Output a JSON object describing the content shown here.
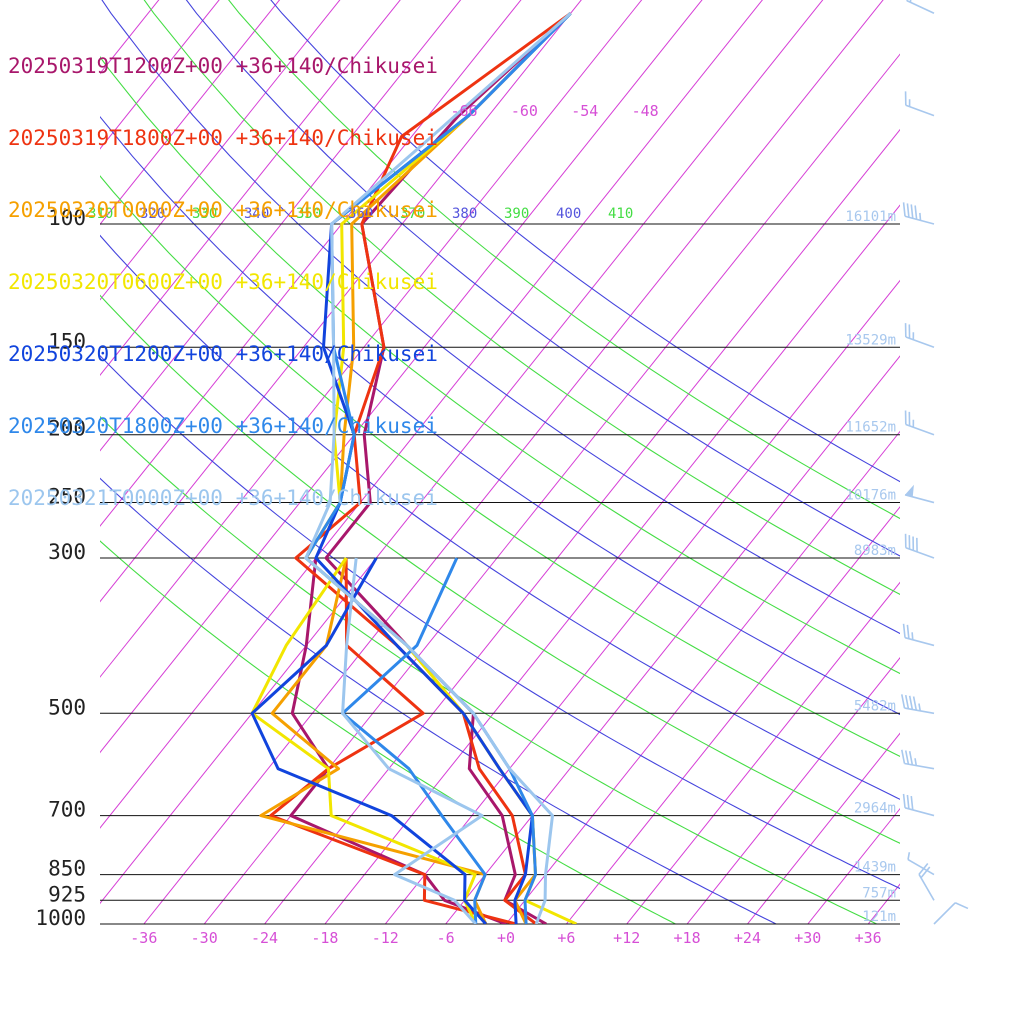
{
  "legend": [
    {
      "label": "20250319T1200Z+00 +36+140/Chikusei",
      "color": "#a8176b"
    },
    {
      "label": "20250319T1800Z+00 +36+140/Chikusei",
      "color": "#ee3311"
    },
    {
      "label": "20250320T0000Z+00 +36+140/Chikusei",
      "color": "#f5a000"
    },
    {
      "label": "20250320T0600Z+00 +36+140/Chikusei",
      "color": "#f2e600"
    },
    {
      "label": "20250320T1200Z+00 +36+140/Chikusei",
      "color": "#1144dd"
    },
    {
      "label": "20250320T1800Z+00 +36+140/Chikusei",
      "color": "#2f88ea"
    },
    {
      "label": "20250321T0000Z+00 +36+140/Chikusei",
      "color": "#9cc6ee"
    }
  ],
  "pressure_levels": [
    {
      "label": "100",
      "p": 100
    },
    {
      "label": "150",
      "p": 150
    },
    {
      "label": "200",
      "p": 200
    },
    {
      "label": "250",
      "p": 250
    },
    {
      "label": "300",
      "p": 300
    },
    {
      "label": "500",
      "p": 500
    },
    {
      "label": "700",
      "p": 700
    },
    {
      "label": "850",
      "p": 850
    },
    {
      "label": "925",
      "p": 925
    },
    {
      "label": "1000",
      "p": 1000
    }
  ],
  "heights": [
    {
      "label": "16101m",
      "p": 100
    },
    {
      "label": "13529m",
      "p": 150
    },
    {
      "label": "11652m",
      "p": 200
    },
    {
      "label": "10176m",
      "p": 250
    },
    {
      "label": "8983m",
      "p": 300
    },
    {
      "label": "5482m",
      "p": 500
    },
    {
      "label": "2964m",
      "p": 700
    },
    {
      "label": "1439m",
      "p": 850
    },
    {
      "label": "757m",
      "p": 925
    },
    {
      "label": "121m",
      "p": 1000
    }
  ],
  "temperature_ticks": [
    "-36",
    "-30",
    "-24",
    "-18",
    "-12",
    "-6",
    "+0",
    "+6",
    "+12",
    "+18",
    "+24",
    "+30",
    "+36"
  ],
  "upper_temperature_labels": [
    "-66",
    "-60",
    "-54",
    "-48"
  ],
  "theta_labels": [
    {
      "label": "310",
      "color": "#44dd44"
    },
    {
      "label": "320",
      "color": "#5555dd"
    },
    {
      "label": "330",
      "color": "#44dd44"
    },
    {
      "label": "340",
      "color": "#5555dd"
    },
    {
      "label": "350",
      "color": "#44dd44"
    },
    {
      "label": "360",
      "color": "#5555dd"
    },
    {
      "label": "370",
      "color": "#44dd44"
    },
    {
      "label": "380",
      "color": "#5555dd"
    },
    {
      "label": "390",
      "color": "#44dd44"
    },
    {
      "label": "400",
      "color": "#5555dd"
    },
    {
      "label": "410",
      "color": "#44dd44"
    }
  ],
  "colors": {
    "isotherm": "#d63fd6",
    "dry_adiabat_a": "#4444dd",
    "dry_adiabat_b": "#44dd44",
    "isobar": "#111111",
    "barb": "#a8c8ee",
    "tick_text": "#d64fd6"
  },
  "chart_data": {
    "type": "skew-t",
    "xlabel": "",
    "ylabel": "",
    "pressure_range_hPa": [
      1000,
      100
    ],
    "temperature_axis_C": [
      -36,
      36
    ],
    "isotherm_step_C": 6,
    "series": [
      {
        "name": "20250319T1200Z+00 +36+140/Chikusei",
        "color": "#a8176b",
        "temperature": [
          [
            1000,
            4
          ],
          [
            925,
            -2
          ],
          [
            850,
            -3
          ],
          [
            700,
            -9
          ],
          [
            600,
            -16
          ],
          [
            500,
            -20
          ],
          [
            400,
            -32
          ],
          [
            300,
            -47
          ],
          [
            250,
            -47
          ],
          [
            200,
            -53
          ],
          [
            150,
            -58
          ],
          [
            100,
            -70
          ],
          [
            70,
            -69
          ],
          [
            50,
            -66
          ]
        ],
        "dewpoint": [
          [
            1000,
            0
          ],
          [
            925,
            -8
          ],
          [
            850,
            -12
          ],
          [
            700,
            -30
          ],
          [
            600,
            -30
          ],
          [
            500,
            -38
          ],
          [
            400,
            -42
          ],
          [
            300,
            -48
          ]
        ]
      },
      {
        "name": "20250319T1800Z+00 +36+140/Chikusei",
        "color": "#ee3311",
        "temperature": [
          [
            1000,
            3
          ],
          [
            925,
            -2
          ],
          [
            850,
            -2
          ],
          [
            700,
            -8
          ],
          [
            600,
            -15
          ],
          [
            500,
            -21
          ],
          [
            400,
            -33
          ],
          [
            300,
            -50
          ],
          [
            250,
            -48
          ],
          [
            200,
            -54
          ],
          [
            150,
            -58
          ],
          [
            100,
            -70
          ],
          [
            75,
            -73
          ],
          [
            50,
            -66
          ]
        ],
        "dewpoint": [
          [
            1000,
            1
          ],
          [
            925,
            -10
          ],
          [
            850,
            -12
          ],
          [
            700,
            -32
          ],
          [
            600,
            -30
          ],
          [
            500,
            -25
          ],
          [
            400,
            -38
          ],
          [
            300,
            -45
          ]
        ]
      },
      {
        "name": "20250320T0000Z+00 +36+140/Chikusei",
        "color": "#f5a000",
        "temperature": [
          [
            1000,
            2
          ],
          [
            925,
            -1
          ],
          [
            850,
            -1
          ],
          [
            700,
            -6
          ],
          [
            600,
            -13
          ],
          [
            500,
            -21
          ],
          [
            400,
            -32
          ],
          [
            300,
            -49
          ],
          [
            250,
            -50
          ],
          [
            200,
            -55
          ],
          [
            150,
            -61
          ],
          [
            100,
            -71
          ],
          [
            70,
            -68
          ],
          [
            50,
            -66
          ]
        ],
        "dewpoint": [
          [
            1000,
            -2
          ],
          [
            925,
            -5
          ],
          [
            850,
            -6
          ],
          [
            700,
            -33
          ],
          [
            600,
            -29
          ],
          [
            500,
            -40
          ],
          [
            400,
            -40
          ],
          [
            300,
            -45
          ]
        ]
      },
      {
        "name": "20250320T0600Z+00 +36+140/Chikusei",
        "color": "#f2e600",
        "temperature": [
          [
            1000,
            7
          ],
          [
            925,
            0
          ],
          [
            850,
            -1
          ],
          [
            700,
            -6
          ],
          [
            600,
            -13
          ],
          [
            500,
            -21
          ],
          [
            400,
            -32
          ],
          [
            300,
            -49
          ],
          [
            250,
            -50
          ],
          [
            200,
            -56
          ],
          [
            150,
            -62
          ],
          [
            100,
            -72
          ],
          [
            70,
            -68
          ],
          [
            50,
            -66
          ]
        ],
        "dewpoint": [
          [
            1000,
            -3
          ],
          [
            925,
            -6
          ],
          [
            850,
            -7
          ],
          [
            700,
            -26
          ],
          [
            600,
            -30
          ],
          [
            500,
            -42
          ],
          [
            400,
            -44
          ],
          [
            300,
            -45
          ]
        ]
      },
      {
        "name": "20250320T1200Z+00 +36+140/Chikusei",
        "color": "#1144dd",
        "temperature": [
          [
            1000,
            1
          ],
          [
            925,
            -1
          ],
          [
            850,
            -2
          ],
          [
            700,
            -6
          ],
          [
            600,
            -13
          ],
          [
            500,
            -21
          ],
          [
            400,
            -33
          ],
          [
            300,
            -48
          ],
          [
            250,
            -50
          ],
          [
            200,
            -54
          ],
          [
            150,
            -64
          ],
          [
            100,
            -73
          ],
          [
            70,
            -68
          ],
          [
            50,
            -66
          ]
        ],
        "dewpoint": [
          [
            1000,
            -2
          ],
          [
            925,
            -6
          ],
          [
            850,
            -8
          ],
          [
            700,
            -20
          ],
          [
            600,
            -35
          ],
          [
            500,
            -42
          ],
          [
            400,
            -40
          ],
          [
            300,
            -42
          ]
        ]
      },
      {
        "name": "20250320T1800Z+00 +36+140/Chikusei",
        "color": "#2f88ea",
        "temperature": [
          [
            1000,
            2
          ],
          [
            925,
            0
          ],
          [
            850,
            -1
          ],
          [
            700,
            -6
          ],
          [
            600,
            -12
          ],
          [
            500,
            -20
          ],
          [
            400,
            -32
          ],
          [
            300,
            -49
          ],
          [
            250,
            -50
          ],
          [
            200,
            -54
          ],
          [
            150,
            -63
          ],
          [
            100,
            -73
          ],
          [
            70,
            -68
          ],
          [
            50,
            -66
          ]
        ],
        "dewpoint": [
          [
            1000,
            -3
          ],
          [
            925,
            -5
          ],
          [
            850,
            -6
          ],
          [
            700,
            -15
          ],
          [
            600,
            -22
          ],
          [
            500,
            -33
          ],
          [
            400,
            -31
          ],
          [
            300,
            -34
          ]
        ]
      },
      {
        "name": "20250321T0000Z+00 +36+140/Chikusei",
        "color": "#9cc6ee",
        "temperature": [
          [
            1000,
            3
          ],
          [
            925,
            2
          ],
          [
            850,
            0
          ],
          [
            700,
            -4
          ],
          [
            600,
            -12
          ],
          [
            500,
            -20
          ],
          [
            400,
            -32
          ],
          [
            300,
            -49
          ],
          [
            250,
            -51
          ],
          [
            200,
            -56
          ],
          [
            150,
            -63
          ],
          [
            100,
            -73
          ],
          [
            75,
            -70
          ],
          [
            50,
            -66
          ]
        ],
        "dewpoint": [
          [
            1000,
            -3
          ],
          [
            925,
            -7
          ],
          [
            850,
            -15
          ],
          [
            700,
            -11
          ],
          [
            600,
            -24
          ],
          [
            500,
            -33
          ],
          [
            400,
            -38
          ],
          [
            300,
            -44
          ]
        ]
      }
    ],
    "wind_barbs": [
      {
        "p": 1000,
        "dir": 45,
        "kt": 10
      },
      {
        "p": 925,
        "dir": 330,
        "kt": 20
      },
      {
        "p": 850,
        "dir": 300,
        "kt": 5
      },
      {
        "p": 700,
        "dir": 285,
        "kt": 30
      },
      {
        "p": 600,
        "dir": 280,
        "kt": 35
      },
      {
        "p": 500,
        "dir": 280,
        "kt": 45
      },
      {
        "p": 400,
        "dir": 285,
        "kt": 25
      },
      {
        "p": 300,
        "dir": 290,
        "kt": 40
      },
      {
        "p": 250,
        "dir": 285,
        "kt": 50
      },
      {
        "p": 200,
        "dir": 290,
        "kt": 25
      },
      {
        "p": 150,
        "dir": 290,
        "kt": 25
      },
      {
        "p": 100,
        "dir": 285,
        "kt": 45
      },
      {
        "p": 70,
        "dir": 290,
        "kt": 15
      },
      {
        "p": 50,
        "dir": 295,
        "kt": 20
      }
    ]
  }
}
